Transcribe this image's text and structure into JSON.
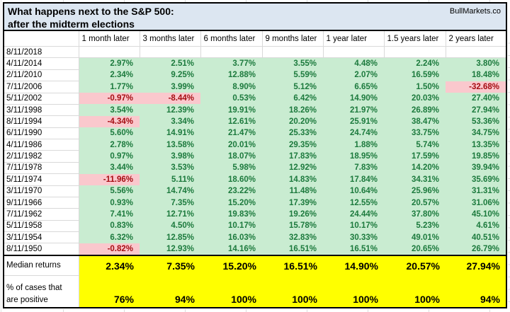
{
  "title": {
    "line1": "What happens next to the S&P 500:",
    "line2": "after the midterm elections",
    "brand": "BullMarkets.co"
  },
  "colors": {
    "title_bg": "#dce6f1",
    "grid": "#d9d9d9",
    "positive_bg": "#c9ecd1",
    "positive_text": "#1c7a3d",
    "negative_bg": "#fac8cd",
    "negative_text": "#a50d12",
    "highlight": "#ffff00"
  },
  "table": {
    "column_headers": [
      "1 month later",
      "3 months later",
      "6 months later",
      "9 months later",
      "1 year later",
      "1.5 years later",
      "2 years later"
    ],
    "rows": [
      {
        "date": "8/11/2018",
        "values": [
          "",
          "",
          "",
          "",
          "",
          "",
          ""
        ]
      },
      {
        "date": "4/11/2014",
        "values": [
          "2.97%",
          "2.51%",
          "3.77%",
          "3.55%",
          "4.48%",
          "2.24%",
          "3.80%"
        ]
      },
      {
        "date": "2/11/2010",
        "values": [
          "2.34%",
          "9.25%",
          "12.88%",
          "5.59%",
          "2.07%",
          "16.59%",
          "18.48%"
        ]
      },
      {
        "date": "7/11/2006",
        "values": [
          "1.77%",
          "3.99%",
          "8.90%",
          "5.12%",
          "6.65%",
          "1.50%",
          "-32.68%"
        ]
      },
      {
        "date": "5/11/2002",
        "values": [
          "-0.97%",
          "-8.44%",
          "0.53%",
          "6.42%",
          "14.90%",
          "20.03%",
          "27.40%"
        ]
      },
      {
        "date": "3/11/1998",
        "values": [
          "3.54%",
          "12.39%",
          "19.91%",
          "18.26%",
          "21.97%",
          "26.89%",
          "27.94%"
        ]
      },
      {
        "date": "8/11/1994",
        "values": [
          "-4.34%",
          "3.34%",
          "12.61%",
          "20.20%",
          "25.91%",
          "38.47%",
          "53.36%"
        ]
      },
      {
        "date": "6/11/1990",
        "values": [
          "5.60%",
          "14.91%",
          "21.47%",
          "25.33%",
          "24.74%",
          "33.75%",
          "34.75%"
        ]
      },
      {
        "date": "4/11/1986",
        "values": [
          "2.78%",
          "13.58%",
          "20.01%",
          "29.35%",
          "1.88%",
          "5.74%",
          "13.35%"
        ]
      },
      {
        "date": "2/11/1982",
        "values": [
          "0.97%",
          "3.98%",
          "18.07%",
          "17.83%",
          "18.95%",
          "17.59%",
          "19.85%"
        ]
      },
      {
        "date": "7/11/1978",
        "values": [
          "3.44%",
          "3.53%",
          "5.98%",
          "12.92%",
          "7.83%",
          "14.20%",
          "39.94%"
        ]
      },
      {
        "date": "5/11/1974",
        "values": [
          "-11.96%",
          "5.11%",
          "18.60%",
          "14.83%",
          "17.84%",
          "34.31%",
          "35.69%"
        ]
      },
      {
        "date": "3/11/1970",
        "values": [
          "5.56%",
          "14.74%",
          "23.22%",
          "11.48%",
          "10.64%",
          "25.96%",
          "31.31%"
        ]
      },
      {
        "date": "9/11/1966",
        "values": [
          "0.93%",
          "7.35%",
          "15.20%",
          "17.39%",
          "12.55%",
          "20.57%",
          "31.06%"
        ]
      },
      {
        "date": "7/11/1962",
        "values": [
          "7.41%",
          "12.71%",
          "19.83%",
          "19.26%",
          "24.44%",
          "37.80%",
          "45.10%"
        ]
      },
      {
        "date": "5/11/1958",
        "values": [
          "0.83%",
          "4.50%",
          "10.17%",
          "15.78%",
          "10.17%",
          "5.23%",
          "4.61%"
        ]
      },
      {
        "date": "3/11/1954",
        "values": [
          "6.32%",
          "12.85%",
          "16.03%",
          "32.83%",
          "30.33%",
          "49.01%",
          "40.51%"
        ]
      },
      {
        "date": "8/11/1950",
        "values": [
          "-0.82%",
          "12.93%",
          "14.16%",
          "16.51%",
          "16.51%",
          "20.65%",
          "26.79%"
        ]
      }
    ],
    "summary": {
      "median_label": "Median returns",
      "median_values": [
        "2.34%",
        "7.35%",
        "15.20%",
        "16.51%",
        "14.90%",
        "20.57%",
        "27.94%"
      ],
      "pct_label_line1": "% of cases that",
      "pct_label_line2": "are positive",
      "pct_values": [
        "76%",
        "94%",
        "100%",
        "100%",
        "100%",
        "100%",
        "94%"
      ]
    }
  }
}
